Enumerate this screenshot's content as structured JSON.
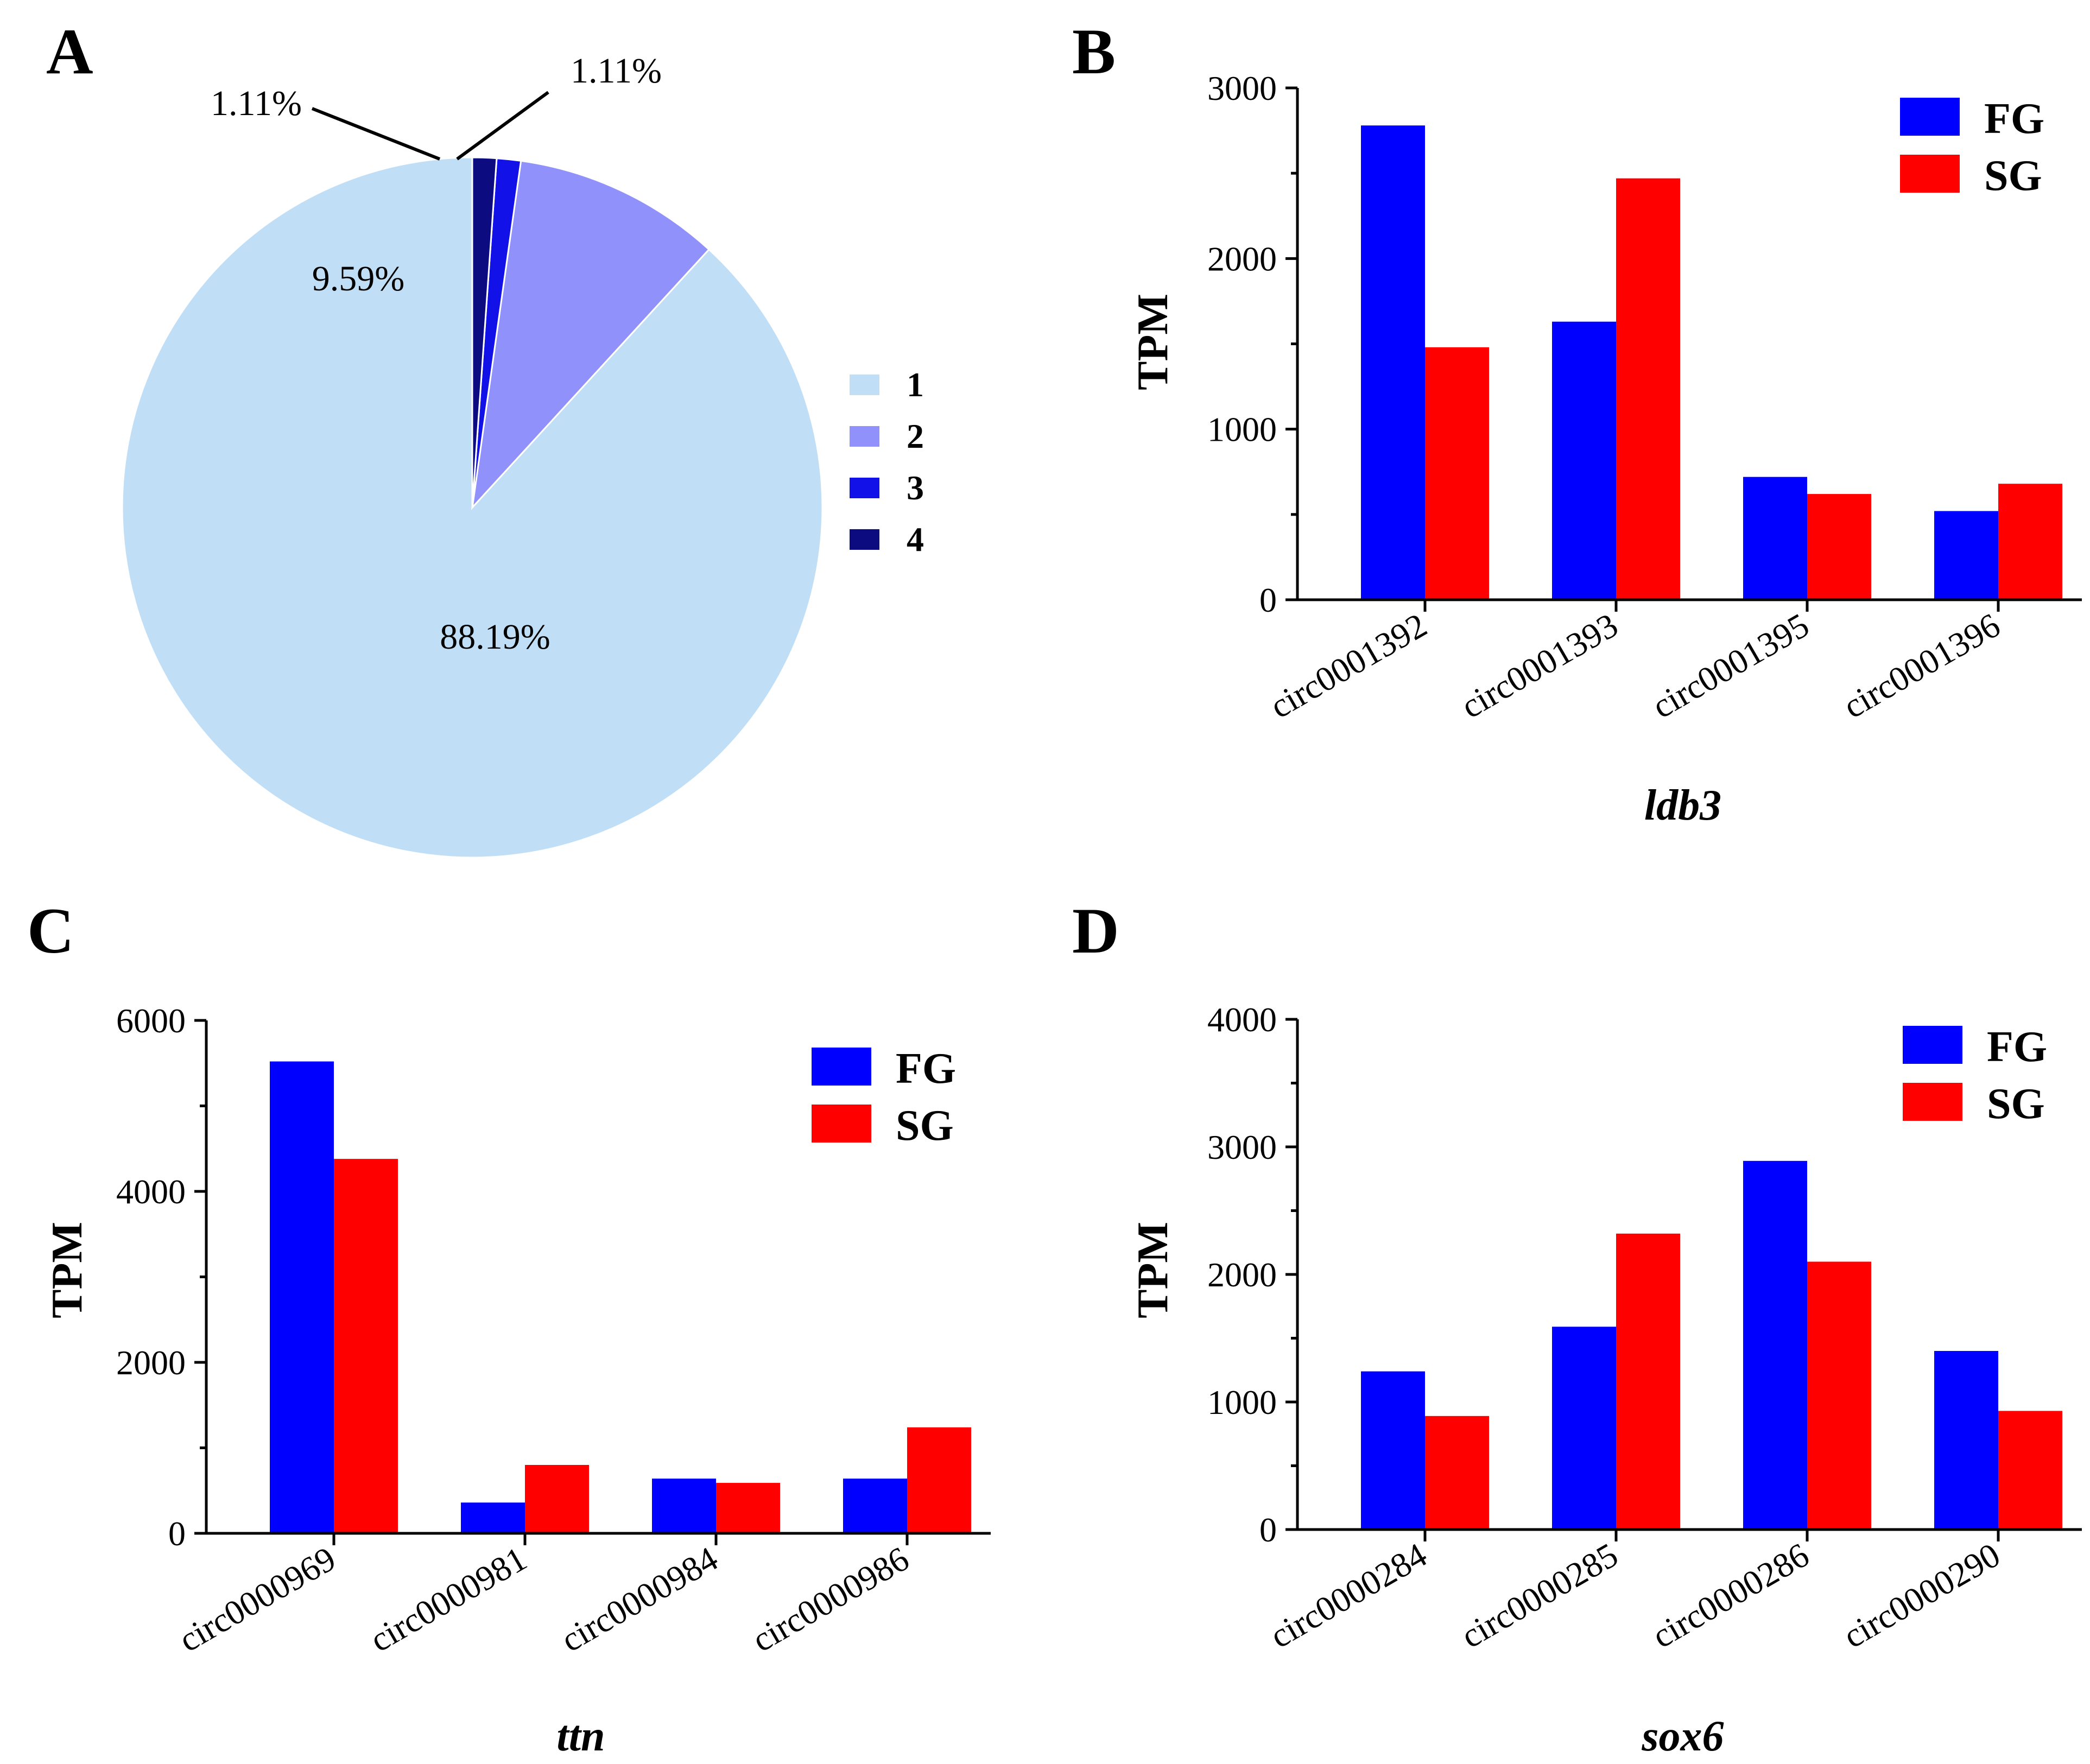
{
  "chart_data": [
    {
      "panel": "A",
      "type": "pie",
      "slices": [
        {
          "name": "1",
          "value": 88.19,
          "label": "88.19%",
          "color": "#c0dff7"
        },
        {
          "name": "2",
          "value": 9.59,
          "label": "9.59%",
          "color": "#9191fb"
        },
        {
          "name": "3",
          "value": 1.11,
          "label": "1.11%",
          "color": "#1212e8"
        },
        {
          "name": "4",
          "value": 1.11,
          "label": "1.11%",
          "color": "#0c0c80"
        }
      ],
      "legend": [
        "1",
        "2",
        "3",
        "4"
      ],
      "legend_position": "right"
    },
    {
      "panel": "B",
      "type": "bar",
      "categories": [
        "circ0001392",
        "circ0001393",
        "circ0001395",
        "circ0001396"
      ],
      "series": [
        {
          "name": "FG",
          "color": "#0000ff",
          "values": [
            2780,
            1630,
            720,
            520
          ]
        },
        {
          "name": "SG",
          "color": "#ff0000",
          "values": [
            1480,
            2470,
            620,
            680
          ]
        }
      ],
      "ylabel": "TPM",
      "xlabel": "ldb3",
      "ylim": [
        0,
        3000
      ],
      "yticks": [
        "0",
        "1000",
        "2000",
        "3000"
      ],
      "legend_position": "top-right"
    },
    {
      "panel": "C",
      "type": "bar",
      "categories": [
        "circ0000969",
        "circ0000981",
        "circ0000984",
        "circ0000986"
      ],
      "series": [
        {
          "name": "FG",
          "color": "#0000ff",
          "values": [
            5520,
            360,
            640,
            640
          ]
        },
        {
          "name": "SG",
          "color": "#ff0000",
          "values": [
            4380,
            800,
            590,
            1240
          ]
        }
      ],
      "ylabel": "TPM",
      "xlabel": "ttn",
      "ylim": [
        0,
        6000
      ],
      "yticks": [
        "0",
        "2000",
        "4000",
        "6000"
      ],
      "legend_position": "top-right"
    },
    {
      "panel": "D",
      "type": "bar",
      "categories": [
        "circ0000284",
        "circ0000285",
        "circ0000286",
        "circ0000290"
      ],
      "series": [
        {
          "name": "FG",
          "color": "#0000ff",
          "values": [
            1240,
            1590,
            2890,
            1400
          ]
        },
        {
          "name": "SG",
          "color": "#ff0000",
          "values": [
            890,
            2320,
            2100,
            930
          ]
        }
      ],
      "ylabel": "TPM",
      "xlabel": "sox6",
      "ylim": [
        0,
        4000
      ],
      "yticks": [
        "0",
        "1000",
        "2000",
        "3000",
        "4000"
      ],
      "legend_position": "top-right"
    }
  ]
}
